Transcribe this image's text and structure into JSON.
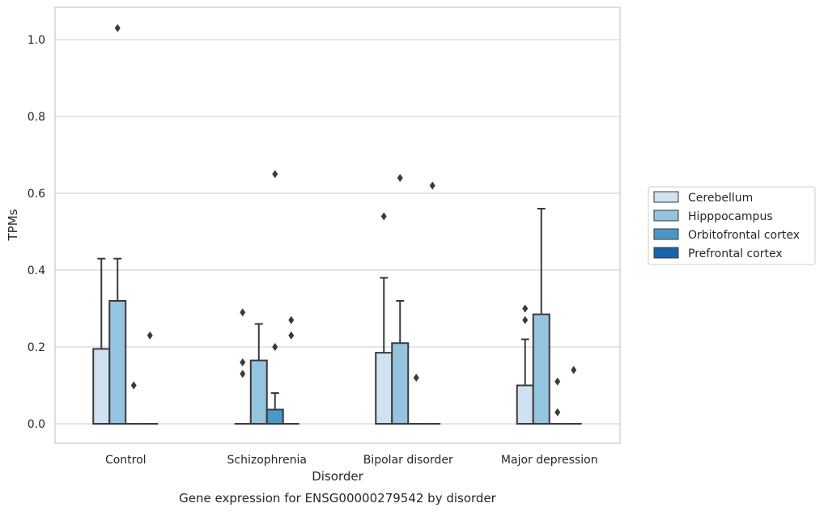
{
  "caption": "Gene expression for ENSG00000279542 by disorder",
  "chart_data": {
    "type": "box",
    "xlabel": "Disorder",
    "ylabel": "TPMs",
    "ylim": [
      -0.05,
      1.08
    ],
    "yticks": [
      0.0,
      0.2,
      0.4,
      0.6,
      0.8,
      1.0
    ],
    "ytick_labels": [
      "0.0",
      "0.2",
      "0.4",
      "0.6",
      "0.8",
      "1.0"
    ],
    "grid": "horizontal",
    "legend_position": "right",
    "categories": [
      "Control",
      "Schizophrenia",
      "Bipolar disorder",
      "Major depression"
    ],
    "series": [
      {
        "name": "Cerebellum",
        "color": "#d0e1f2",
        "boxes": [
          {
            "q1": 0,
            "median": 0,
            "q3": 0.195,
            "whisker_low": 0,
            "whisker_high": 0.43,
            "outliers": []
          },
          {
            "q1": 0,
            "median": 0,
            "q3": 0,
            "whisker_low": 0,
            "whisker_high": 0,
            "outliers": [
              0.13,
              0.16,
              0.29
            ]
          },
          {
            "q1": 0,
            "median": 0,
            "q3": 0.185,
            "whisker_low": 0,
            "whisker_high": 0.38,
            "outliers": [
              0.54
            ]
          },
          {
            "q1": 0,
            "median": 0,
            "q3": 0.1,
            "whisker_low": 0,
            "whisker_high": 0.22,
            "outliers": [
              0.27,
              0.3
            ]
          }
        ]
      },
      {
        "name": "Hipppocampus",
        "color": "#94c4df",
        "boxes": [
          {
            "q1": 0,
            "median": 0,
            "q3": 0.32,
            "whisker_low": 0,
            "whisker_high": 0.43,
            "outliers": [
              1.03
            ]
          },
          {
            "q1": 0,
            "median": 0,
            "q3": 0.165,
            "whisker_low": 0,
            "whisker_high": 0.26,
            "outliers": []
          },
          {
            "q1": 0,
            "median": 0,
            "q3": 0.21,
            "whisker_low": 0,
            "whisker_high": 0.32,
            "outliers": [
              0.64
            ]
          },
          {
            "q1": 0,
            "median": 0,
            "q3": 0.285,
            "whisker_low": 0,
            "whisker_high": 0.56,
            "outliers": []
          }
        ]
      },
      {
        "name": "Orbitofrontal cortex",
        "color": "#4a98c9",
        "boxes": [
          {
            "q1": 0,
            "median": 0,
            "q3": 0,
            "whisker_low": 0,
            "whisker_high": 0,
            "outliers": [
              0.1
            ]
          },
          {
            "q1": 0,
            "median": 0,
            "q3": 0.037,
            "whisker_low": 0,
            "whisker_high": 0.08,
            "outliers": [
              0.2,
              0.65
            ]
          },
          {
            "q1": 0,
            "median": 0,
            "q3": 0,
            "whisker_low": 0,
            "whisker_high": 0,
            "outliers": [
              0.12
            ]
          },
          {
            "q1": 0,
            "median": 0,
            "q3": 0,
            "whisker_low": 0,
            "whisker_high": 0,
            "outliers": [
              0.03,
              0.11
            ]
          }
        ]
      },
      {
        "name": "Prefrontal cortex",
        "color": "#1764ab",
        "boxes": [
          {
            "q1": 0,
            "median": 0,
            "q3": 0,
            "whisker_low": 0,
            "whisker_high": 0,
            "outliers": [
              0.23
            ]
          },
          {
            "q1": 0,
            "median": 0,
            "q3": 0,
            "whisker_low": 0,
            "whisker_high": 0,
            "outliers": [
              0.23,
              0.27
            ]
          },
          {
            "q1": 0,
            "median": 0,
            "q3": 0,
            "whisker_low": 0,
            "whisker_high": 0,
            "outliers": [
              0.62
            ]
          },
          {
            "q1": 0,
            "median": 0,
            "q3": 0,
            "whisker_low": 0,
            "whisker_high": 0,
            "outliers": [
              0.14
            ]
          }
        ]
      }
    ]
  }
}
